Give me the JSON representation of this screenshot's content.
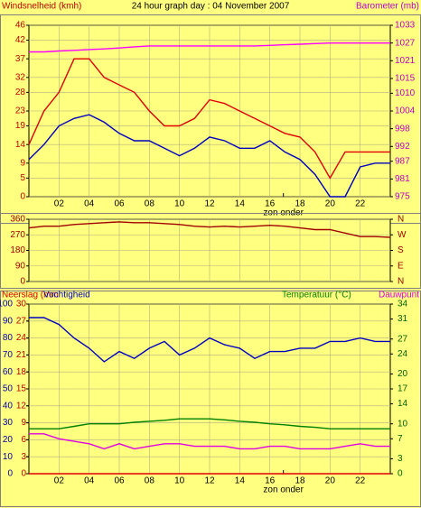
{
  "chart_data": [
    {
      "type": "line",
      "title": "24 hour graph day : 04 November 2007",
      "ylabel": "Windsnelheid (kmh)",
      "y2label": "Barometer (mb)",
      "x": [
        0,
        1,
        2,
        3,
        4,
        5,
        6,
        7,
        8,
        9,
        10,
        11,
        12,
        13,
        14,
        15,
        16,
        17,
        18,
        19,
        20,
        21,
        22,
        23,
        24
      ],
      "xlim": [
        0,
        24
      ],
      "xticks": [
        {
          "value": 2,
          "label": "02"
        },
        {
          "value": 4,
          "label": "04"
        },
        {
          "value": 6,
          "label": "06"
        },
        {
          "value": 8,
          "label": "08"
        },
        {
          "value": 10,
          "label": "10"
        },
        {
          "value": 12,
          "label": "12"
        },
        {
          "value": 14,
          "label": "14"
        },
        {
          "value": 16,
          "label": "16"
        },
        {
          "value": 18,
          "label": "18"
        },
        {
          "value": 20,
          "label": "20"
        },
        {
          "value": 22,
          "label": "22"
        }
      ],
      "ylim": [
        0,
        46
      ],
      "yticks": [
        0,
        5,
        9,
        14,
        19,
        23,
        28,
        32,
        37,
        42,
        46
      ],
      "y2lim": [
        975,
        1033
      ],
      "y2ticks": [
        975,
        981,
        987,
        992,
        998,
        1004,
        1010,
        1015,
        1021,
        1027,
        1033
      ],
      "grid": true,
      "annotation": {
        "text": "zon onder",
        "x": 16.9
      },
      "series": [
        {
          "color": "#e00000",
          "values": [
            14,
            23,
            28,
            37,
            37,
            32,
            30,
            28,
            23,
            19,
            19,
            21,
            26,
            25,
            23,
            21,
            19,
            17,
            16,
            12,
            5,
            12,
            12,
            12,
            12
          ]
        },
        {
          "color": "#0000c0",
          "values": [
            10,
            14,
            19,
            21,
            22,
            20,
            17,
            15,
            15,
            13,
            11,
            13,
            16,
            15,
            13,
            13,
            15,
            12,
            10,
            6,
            0,
            0,
            8,
            9,
            9
          ]
        },
        {
          "color": "#ff00ff",
          "axis": "y2",
          "values": [
            1024,
            1024,
            1024.3,
            1024.5,
            1024.8,
            1025,
            1025.3,
            1025.7,
            1026,
            1026,
            1026,
            1026,
            1026,
            1026,
            1026,
            1026,
            1026.2,
            1026.4,
            1026.6,
            1026.8,
            1027,
            1027,
            1027,
            1027,
            1027
          ]
        }
      ]
    },
    {
      "type": "line",
      "x": [
        0,
        1,
        2,
        3,
        4,
        5,
        6,
        7,
        8,
        9,
        10,
        11,
        12,
        13,
        14,
        15,
        16,
        17,
        18,
        19,
        20,
        21,
        22,
        23,
        24
      ],
      "xlim": [
        0,
        24
      ],
      "xticks": [
        {
          "value": 2,
          "label": "02"
        },
        {
          "value": 4,
          "label": "04"
        },
        {
          "value": 6,
          "label": "06"
        },
        {
          "value": 8,
          "label": "08"
        },
        {
          "value": 10,
          "label": "10"
        },
        {
          "value": 12,
          "label": "12"
        },
        {
          "value": 14,
          "label": "14"
        },
        {
          "value": 16,
          "label": "16"
        },
        {
          "value": 18,
          "label": "18"
        },
        {
          "value": 20,
          "label": "20"
        },
        {
          "value": 22,
          "label": "22"
        }
      ],
      "ylim": [
        0,
        360
      ],
      "yticks": [
        0,
        90,
        180,
        270,
        360
      ],
      "y2lim": [
        0,
        360
      ],
      "y2ticks": [
        {
          "value": 0,
          "label": "N"
        },
        {
          "value": 90,
          "label": "E"
        },
        {
          "value": 180,
          "label": "S"
        },
        {
          "value": 270,
          "label": "W"
        },
        {
          "value": 360,
          "label": "N"
        }
      ],
      "grid": true,
      "series": [
        {
          "color": "#a00000",
          "values": [
            310,
            320,
            320,
            330,
            335,
            340,
            345,
            340,
            340,
            335,
            330,
            320,
            315,
            320,
            315,
            320,
            325,
            320,
            310,
            300,
            300,
            280,
            260,
            260,
            255
          ]
        }
      ]
    },
    {
      "type": "line",
      "x": [
        0,
        1,
        2,
        3,
        4,
        5,
        6,
        7,
        8,
        9,
        10,
        11,
        12,
        13,
        14,
        15,
        16,
        17,
        18,
        19,
        20,
        21,
        22,
        23,
        24
      ],
      "xlim": [
        0,
        24
      ],
      "xticks": [
        {
          "value": 2,
          "label": "02"
        },
        {
          "value": 4,
          "label": "04"
        },
        {
          "value": 6,
          "label": "06"
        },
        {
          "value": 8,
          "label": "08"
        },
        {
          "value": 10,
          "label": "10"
        },
        {
          "value": 12,
          "label": "12"
        },
        {
          "value": 14,
          "label": "14"
        },
        {
          "value": 16,
          "label": "16"
        },
        {
          "value": 18,
          "label": "18"
        },
        {
          "value": 20,
          "label": "20"
        },
        {
          "value": 22,
          "label": "22"
        }
      ],
      "ylim": [
        0,
        100
      ],
      "yticks": [
        0,
        10,
        20,
        30,
        40,
        50,
        60,
        70,
        80,
        90,
        100
      ],
      "y3lim": [
        0,
        30
      ],
      "y3ticks": [
        0,
        3,
        6,
        9,
        12,
        15,
        18,
        21,
        24,
        27,
        30
      ],
      "y2lim": [
        0,
        34
      ],
      "y2ticks": [
        0,
        3,
        7,
        10,
        14,
        17,
        20,
        24,
        27,
        31,
        34
      ],
      "grid": true,
      "annotation": {
        "text": "zon onder",
        "x": 16.9
      },
      "series": [
        {
          "name": "Neerslag (mm",
          "color": "#e00000",
          "axis": "y3",
          "values": [
            0,
            0,
            0,
            0,
            0,
            0,
            0,
            0,
            0,
            0,
            0,
            0,
            0,
            0,
            0,
            0,
            0,
            0,
            0,
            0,
            0,
            0,
            0,
            0,
            0
          ]
        },
        {
          "name": "Vochtigheid",
          "color": "#0000c0",
          "values": [
            92,
            92,
            88,
            80,
            74,
            66,
            72,
            68,
            74,
            78,
            70,
            74,
            80,
            76,
            74,
            68,
            72,
            72,
            74,
            74,
            78,
            78,
            80,
            78,
            78
          ]
        },
        {
          "name": "Temperatuur (°C)",
          "color": "#008000",
          "axis": "y2",
          "values": [
            9,
            9,
            9,
            9.5,
            10,
            10,
            10,
            10.3,
            10.5,
            10.7,
            11,
            11,
            11,
            10.8,
            10.5,
            10.3,
            10,
            9.8,
            9.5,
            9.3,
            9,
            9,
            9,
            9,
            9
          ]
        },
        {
          "name": "Dauwpunt",
          "color": "#e000e0",
          "axis": "y2",
          "values": [
            8,
            8,
            7,
            6.5,
            6,
            5,
            6,
            5,
            5.5,
            6,
            6,
            5.5,
            5.5,
            5.5,
            5,
            5,
            5.5,
            5.5,
            5,
            5,
            5,
            5.5,
            6,
            5.5,
            5.5
          ]
        }
      ]
    }
  ]
}
